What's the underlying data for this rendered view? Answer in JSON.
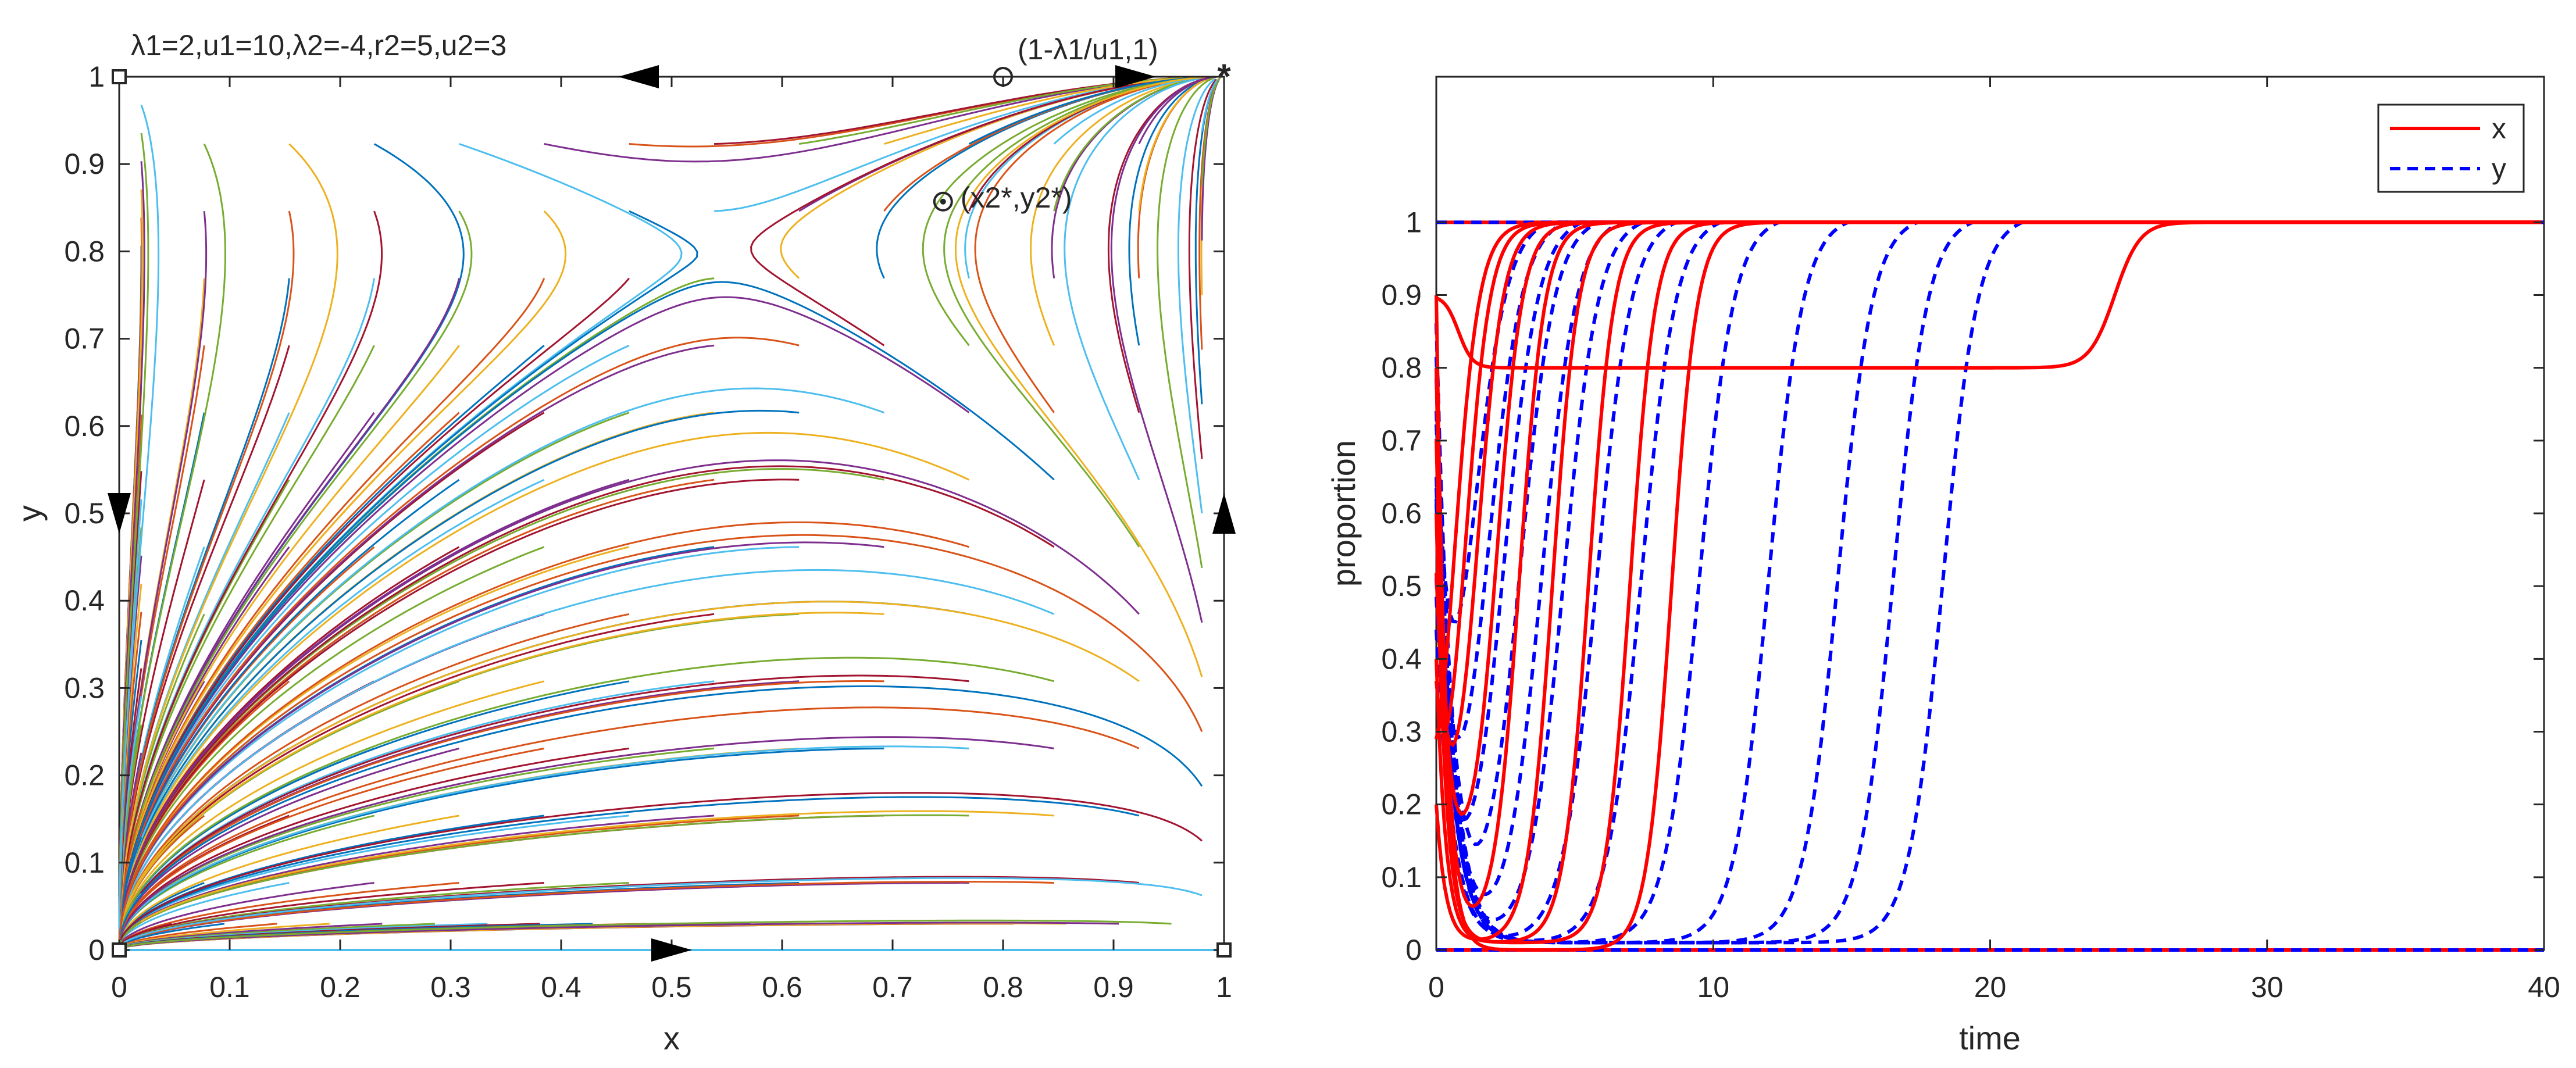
{
  "chart_data": [
    {
      "type": "phase-portrait",
      "annotation": "λ1=2,u1=10,λ2=-4,r2=5,u2=3",
      "params": {
        "lambda1": 2,
        "u1": 10,
        "lambda2": -4,
        "r2": 5,
        "u2": 3
      },
      "xlabel": "x",
      "ylabel": "y",
      "xlim": [
        0,
        1
      ],
      "ylim": [
        0,
        1
      ],
      "x_ticks": [
        "0",
        "0.1",
        "0.2",
        "0.3",
        "0.4",
        "0.5",
        "0.6",
        "0.7",
        "0.8",
        "0.9",
        "1"
      ],
      "y_ticks": [
        "0",
        "0.1",
        "0.2",
        "0.3",
        "0.4",
        "0.5",
        "0.6",
        "0.7",
        "0.8",
        "0.9",
        "1"
      ],
      "equilibria": [
        {
          "label": "(1-λ1/u1,1)",
          "x": 0.8,
          "y": 1,
          "marker": "circle"
        },
        {
          "label": "(x2*,y2*)",
          "x": 0.772,
          "y": 0.857,
          "marker": "circle-dot"
        },
        {
          "label": "",
          "x": 1,
          "y": 1,
          "marker": "star"
        },
        {
          "label": "",
          "x": 0,
          "y": 0,
          "marker": "square"
        },
        {
          "label": "",
          "x": 1,
          "y": 0,
          "marker": "square"
        },
        {
          "label": "",
          "x": 0,
          "y": 1,
          "marker": "square"
        }
      ],
      "boundary_arrows": [
        {
          "x": 0.47,
          "y": 1,
          "direction": "left"
        },
        {
          "x": 0.92,
          "y": 1,
          "direction": "right"
        },
        {
          "x": 0.5,
          "y": 0,
          "direction": "right"
        },
        {
          "x": 0,
          "y": 0.5,
          "direction": "down"
        },
        {
          "x": 1,
          "y": 0.5,
          "direction": "up"
        }
      ]
    },
    {
      "type": "line",
      "xlabel": "time",
      "ylabel": "proportion",
      "xlim": [
        0,
        40
      ],
      "ylim": [
        0,
        1.2
      ],
      "x_ticks": [
        "0",
        "10",
        "20",
        "30",
        "40"
      ],
      "y_ticks": [
        "0",
        "0.1",
        "0.2",
        "0.3",
        "0.4",
        "0.5",
        "0.6",
        "0.7",
        "0.8",
        "0.9",
        "1"
      ],
      "legend": [
        {
          "name": "x",
          "color": "#ff0000",
          "style": "solid"
        },
        {
          "name": "y",
          "color": "#0000ff",
          "style": "dashed"
        }
      ],
      "legend_position": "top-right",
      "x_curves": [
        {
          "x0": 0.1,
          "rise_t": 0.6,
          "min": 0.02
        },
        {
          "x0": 0.3,
          "rise_t": 1.0,
          "min": 0.05
        },
        {
          "x0": 0.5,
          "rise_t": 1.5,
          "min": 0.12
        },
        {
          "x0": 0.7,
          "rise_t": 2.2,
          "min": 0.1
        },
        {
          "x0": 0.9,
          "rise_t": 3.0,
          "min": 0.02
        },
        {
          "x0": 0.2,
          "rise_t": 4.2,
          "min": 0.01
        },
        {
          "x0": 0.4,
          "rise_t": 5.5,
          "min": 0.01
        },
        {
          "x0": 0.6,
          "rise_t": 7.0,
          "min": 0.01
        },
        {
          "x0": 0.8,
          "rise_t": 8.5,
          "min": 0.0
        }
      ],
      "x_plateau_curve": {
        "plateau": 0.8,
        "rise_t": 24.5
      },
      "y_curves": [
        {
          "rise_t": 1.2
        },
        {
          "rise_t": 1.8
        },
        {
          "rise_t": 2.4
        },
        {
          "rise_t": 3.0
        },
        {
          "rise_t": 3.8
        },
        {
          "rise_t": 4.6
        },
        {
          "rise_t": 5.8
        },
        {
          "rise_t": 7.4
        },
        {
          "rise_t": 9.5
        },
        {
          "rise_t": 12.0
        },
        {
          "rise_t": 14.5
        },
        {
          "rise_t": 16.5
        },
        {
          "rise_t": 18.3
        }
      ]
    }
  ]
}
